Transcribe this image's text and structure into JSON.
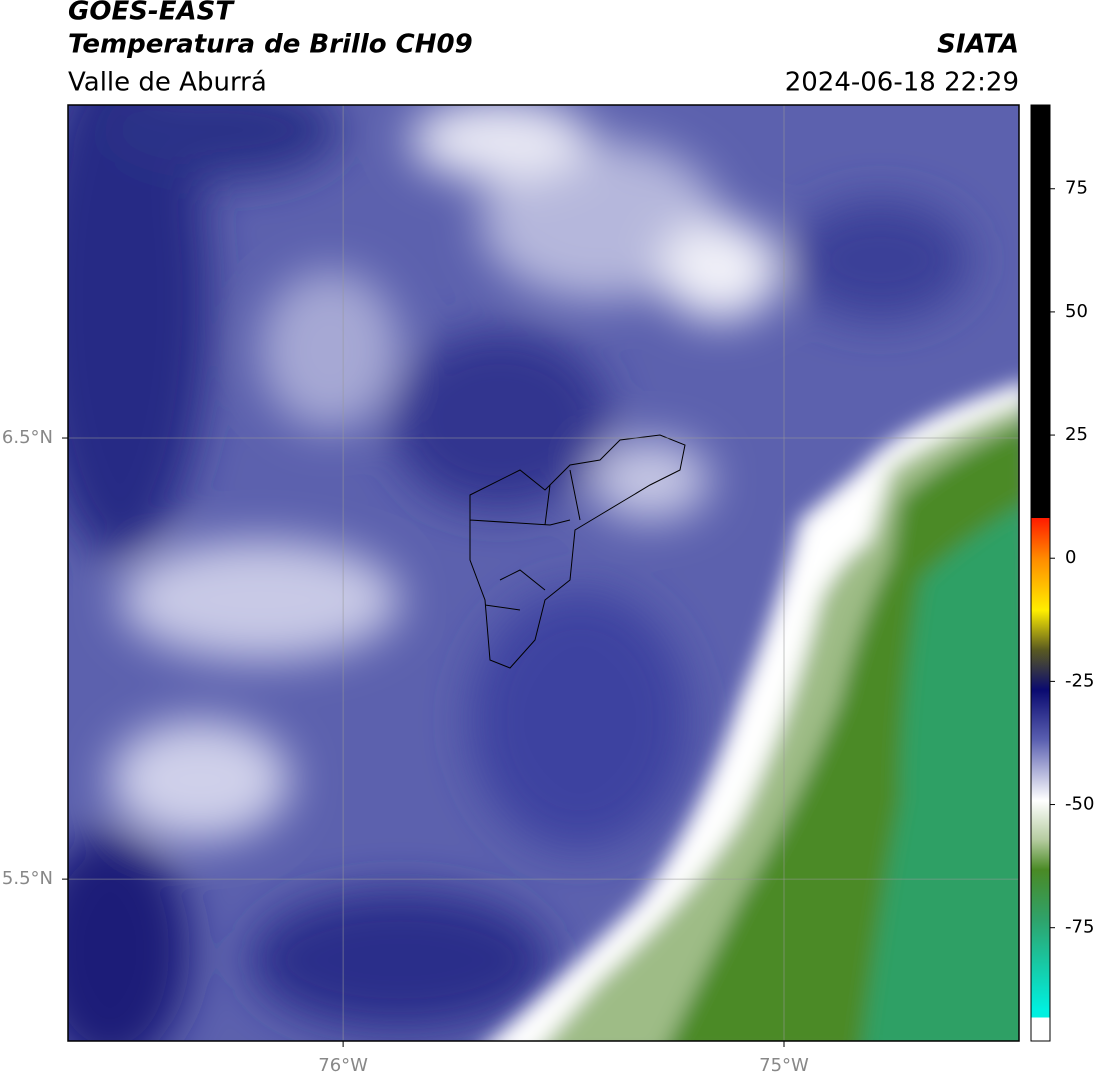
{
  "header": {
    "title": "GOES-EAST",
    "subtitle": "Temperatura de Brillo CH09",
    "region": "Valle de Aburrá",
    "source": "SIATA",
    "datetime": "2024-06-18 22:29"
  },
  "map": {
    "xlim": [
      -76.624,
      -74.467
    ],
    "ylim": [
      5.133,
      7.255
    ],
    "xticks": [
      {
        "value": -76,
        "label": "76°W"
      },
      {
        "value": -75,
        "label": "75°W"
      }
    ],
    "yticks": [
      {
        "value": 6.5,
        "label": "6.5°N"
      },
      {
        "value": 5.5,
        "label": "5.5°N"
      }
    ],
    "grid": true
  },
  "colorbar": {
    "lim": [
      -98,
      92
    ],
    "ticks": [
      75,
      50,
      25,
      0,
      -25,
      -50,
      -75
    ]
  }
}
